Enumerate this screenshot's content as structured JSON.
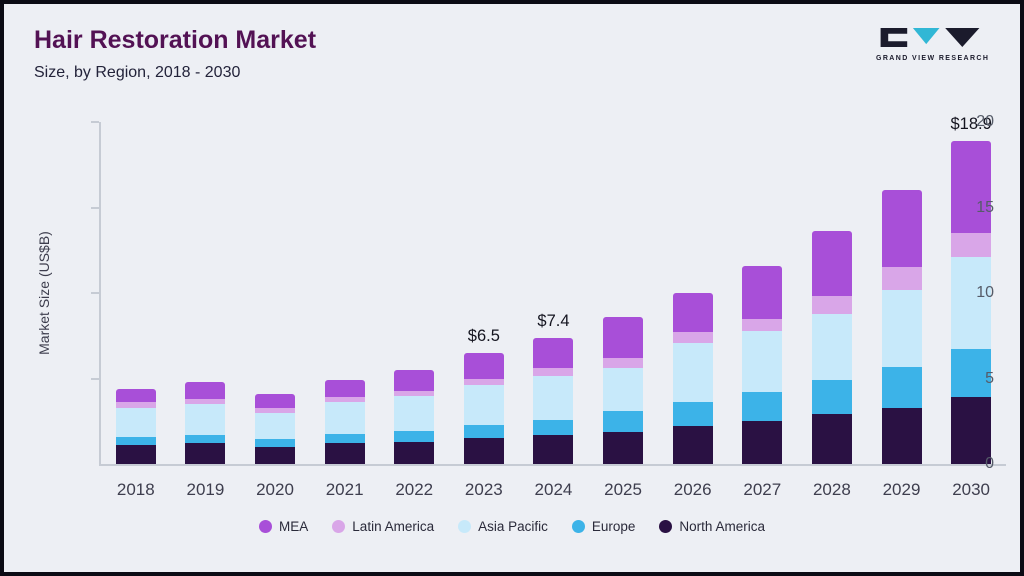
{
  "header": {
    "title": "Hair Restoration Market",
    "subtitle": "Size, by Region, 2018 - 2030",
    "logo_text": "GRAND VIEW RESEARCH"
  },
  "chart_data": {
    "type": "bar",
    "stacked": true,
    "title": "Hair Restoration Market Size, by Region, 2018 - 2030",
    "xlabel": "",
    "ylabel": "Market Size (US$B)",
    "ylim": [
      0,
      20
    ],
    "yticks": [
      0,
      5,
      10,
      15,
      20
    ],
    "grid": false,
    "legend_position": "bottom",
    "categories": [
      "2018",
      "2019",
      "2020",
      "2021",
      "2022",
      "2023",
      "2024",
      "2025",
      "2026",
      "2027",
      "2028",
      "2029",
      "2030"
    ],
    "series": [
      {
        "name": "North America",
        "color": "#2a1143",
        "values": [
          1.1,
          1.2,
          1.0,
          1.2,
          1.3,
          1.5,
          1.7,
          1.9,
          2.2,
          2.5,
          2.9,
          3.3,
          3.9
        ]
      },
      {
        "name": "Europe",
        "color": "#3cb3e8",
        "values": [
          0.5,
          0.5,
          0.45,
          0.55,
          0.65,
          0.8,
          0.9,
          1.2,
          1.4,
          1.7,
          2.0,
          2.4,
          2.8
        ]
      },
      {
        "name": "Asia Pacific",
        "color": "#c7e9fa",
        "values": [
          1.7,
          1.8,
          1.55,
          1.85,
          2.0,
          2.3,
          2.55,
          2.5,
          3.5,
          3.6,
          3.9,
          4.5,
          5.4
        ]
      },
      {
        "name": "Latin America",
        "color": "#d9a6e8",
        "values": [
          0.3,
          0.3,
          0.3,
          0.3,
          0.35,
          0.4,
          0.45,
          0.6,
          0.6,
          0.7,
          1.0,
          1.3,
          1.4
        ]
      },
      {
        "name": "MEA",
        "color": "#a84fd8",
        "values": [
          0.8,
          1.0,
          0.8,
          1.0,
          1.2,
          1.5,
          1.8,
          2.4,
          2.3,
          3.1,
          3.8,
          4.5,
          5.4
        ]
      }
    ],
    "totals": [
      4.4,
      4.8,
      4.1,
      4.9,
      5.5,
      6.5,
      7.4,
      8.6,
      10.0,
      11.6,
      13.6,
      16.0,
      18.9
    ],
    "total_labels": {
      "2023": "$6.5",
      "2024": "$7.4",
      "2030": "$18.9"
    },
    "legend": [
      "MEA",
      "Latin America",
      "Asia Pacific",
      "Europe",
      "North America"
    ]
  }
}
